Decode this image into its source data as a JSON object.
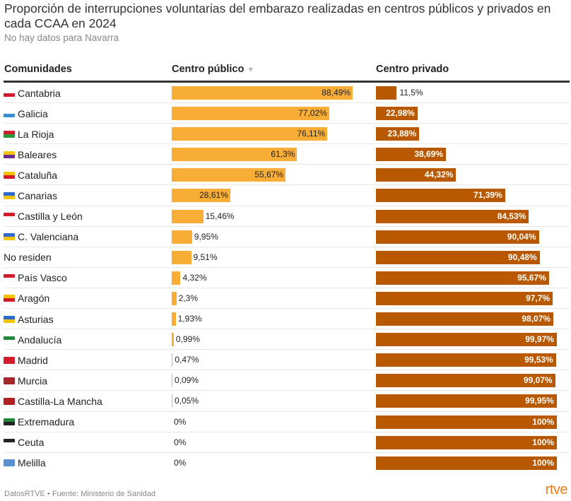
{
  "chart_data": {
    "type": "table",
    "title": "Proporción de interrupciones voluntarias del embarazo realizadas en centros públicos y privados en cada CCAA en 2024",
    "subtitle": "No hay datos para Navarra",
    "columns": [
      "Comunidades",
      "Centro público",
      "Centro privado"
    ],
    "sort_icon": "▼",
    "colors": {
      "publico": "#f8ad36",
      "privado": "#b85800"
    },
    "rows": [
      {
        "name": "Cantabria",
        "pub": 88.49,
        "pub_label": "88,49%",
        "priv": 11.5,
        "priv_label": "11,5%",
        "flag": [
          "#fff",
          "#d21c2c"
        ]
      },
      {
        "name": "Galicia",
        "pub": 77.02,
        "pub_label": "77,02%",
        "priv": 22.98,
        "priv_label": "22,98%",
        "flag": [
          "#fff",
          "#3a8fd1"
        ]
      },
      {
        "name": "La Rioja",
        "pub": 76.11,
        "pub_label": "76,11%",
        "priv": 23.88,
        "priv_label": "23,88%",
        "flag": [
          "#d21c2c",
          "#2a9a3a"
        ]
      },
      {
        "name": "Baleares",
        "pub": 61.3,
        "pub_label": "61,3%",
        "priv": 38.69,
        "priv_label": "38,69%",
        "flag": [
          "#f5c300",
          "#6a2c91"
        ]
      },
      {
        "name": "Cataluña",
        "pub": 55.67,
        "pub_label": "55,67%",
        "priv": 44.32,
        "priv_label": "44,32%",
        "flag": [
          "#f5c300",
          "#d21c2c"
        ]
      },
      {
        "name": "Canarias",
        "pub": 28.61,
        "pub_label": "28,61%",
        "priv": 71.39,
        "priv_label": "71,39%",
        "flag": [
          "#2a6ad1",
          "#f5c300"
        ]
      },
      {
        "name": "Castilla y León",
        "pub": 15.46,
        "pub_label": "15,46%",
        "priv": 84.53,
        "priv_label": "84,53%",
        "flag": [
          "#d21c2c",
          "#fff"
        ]
      },
      {
        "name": "C. Valenciana",
        "pub": 9.95,
        "pub_label": "9,95%",
        "priv": 90.04,
        "priv_label": "90,04%",
        "flag": [
          "#2a6ad1",
          "#f5c300"
        ]
      },
      {
        "name": "No residen",
        "pub": 9.51,
        "pub_label": "9,51%",
        "priv": 90.48,
        "priv_label": "90,48%",
        "flag": null
      },
      {
        "name": "País Vasco",
        "pub": 4.32,
        "pub_label": "4,32%",
        "priv": 95.67,
        "priv_label": "95,67%",
        "flag": [
          "#d21c2c",
          "#fff"
        ]
      },
      {
        "name": "Aragón",
        "pub": 2.3,
        "pub_label": "2,3%",
        "priv": 97.7,
        "priv_label": "97,7%",
        "flag": [
          "#f5c300",
          "#d21c2c"
        ]
      },
      {
        "name": "Asturias",
        "pub": 1.93,
        "pub_label": "1,93%",
        "priv": 98.07,
        "priv_label": "98,07%",
        "flag": [
          "#2a6ad1",
          "#f5c300"
        ]
      },
      {
        "name": "Andalucía",
        "pub": 0.99,
        "pub_label": "0,99%",
        "priv": 99.97,
        "priv_label": "99,97%",
        "flag": [
          "#1e8a3a",
          "#fff"
        ]
      },
      {
        "name": "Madrid",
        "pub": 0.47,
        "pub_label": "0,47%",
        "priv": 99.53,
        "priv_label": "99,53%",
        "flag": [
          "#d21c2c",
          "#d21c2c"
        ]
      },
      {
        "name": "Murcia",
        "pub": 0.09,
        "pub_label": "0,09%",
        "priv": 99.07,
        "priv_label": "99,07%",
        "flag": [
          "#a4282c",
          "#a4282c"
        ]
      },
      {
        "name": "Castilla-La Mancha",
        "pub": 0.05,
        "pub_label": "0,05%",
        "priv": 99.95,
        "priv_label": "99,95%",
        "flag": [
          "#b02020",
          "#b02020"
        ]
      },
      {
        "name": "Extremadura",
        "pub": 0,
        "pub_label": "0%",
        "priv": 100,
        "priv_label": "100%",
        "flag": [
          "#1e8a3a",
          "#222"
        ]
      },
      {
        "name": "Ceuta",
        "pub": 0,
        "pub_label": "0%",
        "priv": 100,
        "priv_label": "100%",
        "flag": [
          "#222",
          "#fff"
        ]
      },
      {
        "name": "Melilla",
        "pub": 0,
        "pub_label": "0%",
        "priv": 100,
        "priv_label": "100%",
        "flag": [
          "#5a8fd1",
          "#5a8fd1"
        ]
      }
    ]
  },
  "footer": "DatosRTVE • Fuente: Ministerio de Sanidad",
  "logo": "rtve"
}
